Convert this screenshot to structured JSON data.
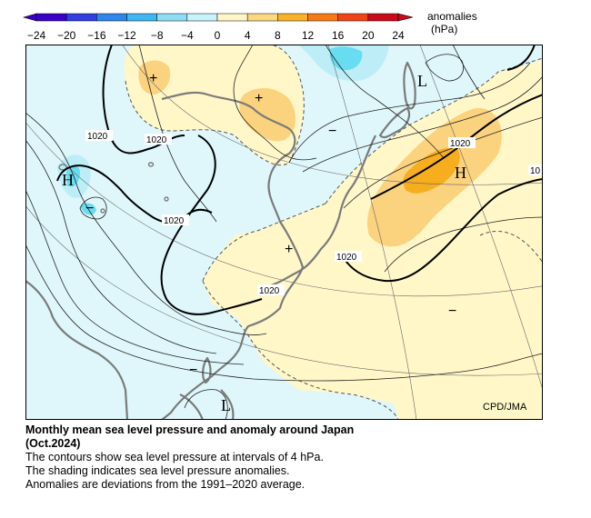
{
  "colorbar": {
    "title_line1": "anomalies",
    "title_line2": "(hPa)",
    "ticks": [
      "−24",
      "−20",
      "−16",
      "−12",
      "−8",
      "−4",
      "0",
      "4",
      "8",
      "12",
      "16",
      "20",
      "24"
    ],
    "colors": [
      "#3a00c8",
      "#2f3fe0",
      "#2f86ea",
      "#3fb6f0",
      "#8fdcf5",
      "#c8f3fb",
      "#ffffff",
      "#fff6c8",
      "#fbd882",
      "#f8b22a",
      "#f67a18",
      "#ef4418",
      "#c80a1a"
    ]
  },
  "map": {
    "credit": "CPD/JMA",
    "isobar_labels": [
      "1020",
      "1020",
      "1020",
      "1020",
      "1020",
      "1020",
      "10"
    ],
    "centers": [
      "L",
      "H",
      "H",
      "L"
    ],
    "minus_marks": [
      "−",
      "−",
      "−",
      "−"
    ],
    "plus_marks": [
      "+",
      "+",
      "+"
    ],
    "colors": {
      "ocean_base": "#dff7fb",
      "positive_light": "#fff7c8",
      "positive_mid": "#fbd27e",
      "positive_strong": "#f6ad1e",
      "negative_light": "#bdeef8",
      "negative_mid": "#68dcf0",
      "coastline": "#7a7a7a"
    }
  },
  "caption": {
    "title_line1": "Monthly mean sea level pressure and anomaly around Japan",
    "title_line2": "(Oct.2024)",
    "line1": "The contours show sea level pressure at intervals of 4 hPa.",
    "line2": "The shading indicates sea level pressure anomalies.",
    "line3": "Anomalies are deviations from the 1991–2020 average."
  }
}
